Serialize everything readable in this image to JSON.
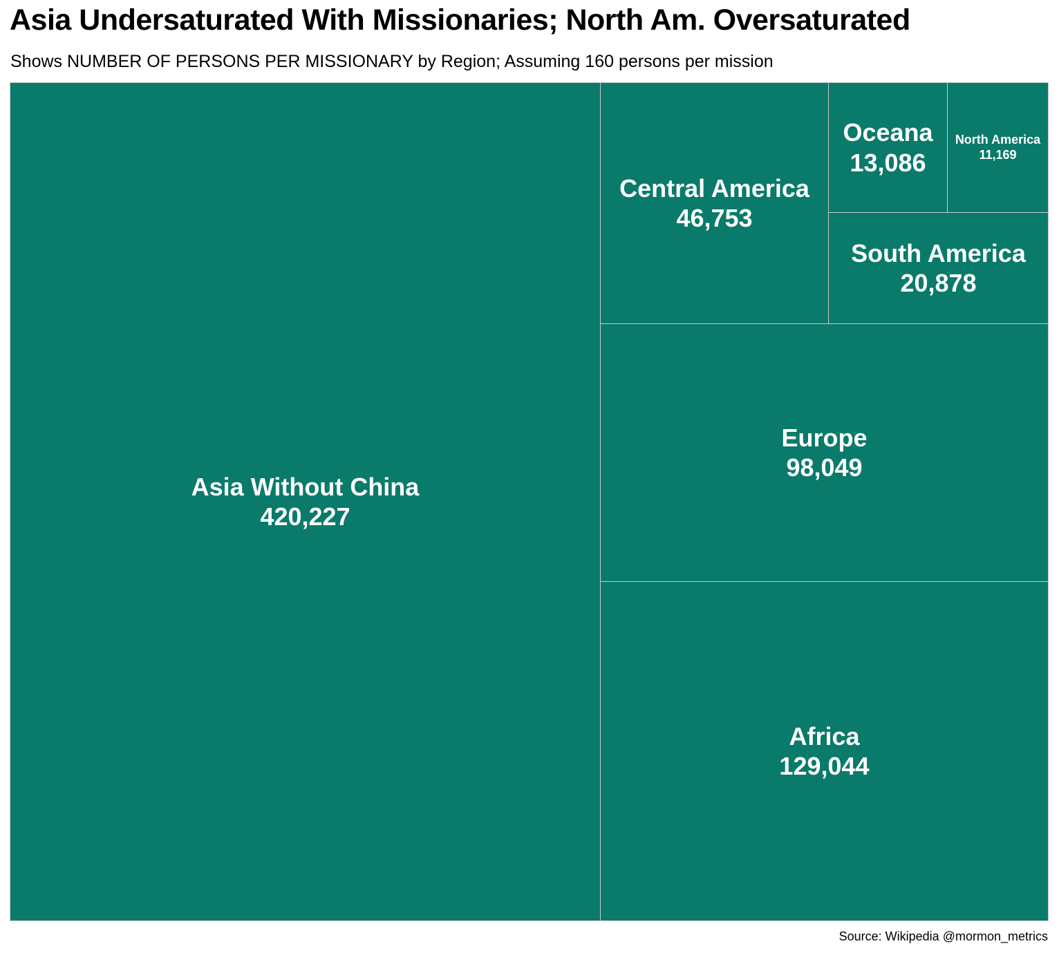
{
  "chart_data": {
    "type": "treemap",
    "title": "Asia Undersaturated With Missionaries; North Am. Oversaturated",
    "subtitle": "Shows NUMBER OF PERSONS PER MISSIONARY by Region; Assuming 160 persons per mission",
    "source": "Source: Wikipedia @mormon_metrics",
    "color": "#0a7a6b",
    "border_color": "#c9c9c9",
    "label_color": "#ffffff",
    "categories": [
      "Asia Without China",
      "Africa",
      "Europe",
      "Central America",
      "South America",
      "Oceana",
      "North America"
    ],
    "values": [
      420227,
      129044,
      98049,
      46753,
      20878,
      13086,
      11169
    ],
    "value_labels": [
      "420,227",
      "129,044",
      "98,049",
      "46,753",
      "20,878",
      "13,086",
      "11,169"
    ]
  }
}
